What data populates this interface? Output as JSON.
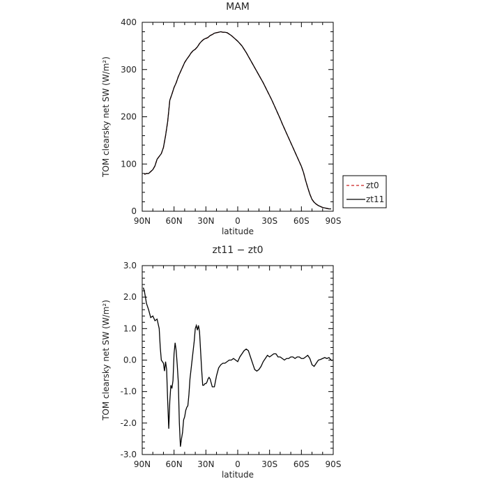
{
  "chart_data": [
    {
      "type": "line",
      "title": "MAM",
      "xlabel": "latitude",
      "ylabel": "TOM clearsky net SW (W/m²)",
      "x_ticks": [
        "90N",
        "60N",
        "30N",
        "0",
        "30S",
        "60S",
        "90S"
      ],
      "xlim": [
        90,
        -90
      ],
      "ylim": [
        0,
        400
      ],
      "y_ticks": [
        "0",
        "100",
        "200",
        "300",
        "400"
      ],
      "legend_position": "right-middle",
      "series": [
        {
          "name": "zt0",
          "color": "#cc2222",
          "style": "dashed",
          "x": [
            88,
            86,
            84,
            82,
            80,
            78,
            76,
            74,
            72,
            70,
            68,
            66,
            64,
            62,
            60,
            58,
            56,
            54,
            52,
            50,
            48,
            46,
            44,
            42,
            40,
            38,
            36,
            34,
            32,
            30,
            28,
            26,
            24,
            22,
            20,
            18,
            16,
            14,
            12,
            10,
            8,
            6,
            4,
            2,
            0,
            -2,
            -4,
            -6,
            -8,
            -10,
            -12,
            -14,
            -16,
            -18,
            -20,
            -22,
            -24,
            -26,
            -28,
            -30,
            -32,
            -34,
            -36,
            -38,
            -40,
            -42,
            -44,
            -46,
            -48,
            -50,
            -52,
            -54,
            -56,
            -58,
            -60,
            -62,
            -64,
            -66,
            -68,
            -70,
            -72,
            -74,
            -76,
            -78,
            -80,
            -82,
            -84,
            -86,
            -88
          ],
          "values": [
            78,
            80,
            80,
            84,
            88,
            96,
            110,
            116,
            122,
            135,
            160,
            190,
            235,
            248,
            262,
            272,
            285,
            295,
            305,
            315,
            322,
            328,
            335,
            340,
            343,
            348,
            355,
            360,
            364,
            365,
            368,
            372,
            374,
            377,
            378,
            379,
            380,
            379,
            379,
            378,
            375,
            372,
            368,
            364,
            360,
            355,
            350,
            343,
            336,
            328,
            320,
            312,
            304,
            296,
            288,
            280,
            272,
            263,
            254,
            245,
            236,
            226,
            216,
            206,
            196,
            185,
            175,
            165,
            155,
            145,
            135,
            125,
            115,
            105,
            95,
            82,
            65,
            50,
            36,
            25,
            19,
            15,
            12,
            10,
            8,
            7,
            6,
            5,
            5
          ]
        },
        {
          "name": "zt11",
          "color": "#000000",
          "style": "solid",
          "x": [
            88,
            86,
            84,
            82,
            80,
            78,
            76,
            74,
            72,
            70,
            68,
            66,
            64,
            62,
            60,
            58,
            56,
            54,
            52,
            50,
            48,
            46,
            44,
            42,
            40,
            38,
            36,
            34,
            32,
            30,
            28,
            26,
            24,
            22,
            20,
            18,
            16,
            14,
            12,
            10,
            8,
            6,
            4,
            2,
            0,
            -2,
            -4,
            -6,
            -8,
            -10,
            -12,
            -14,
            -16,
            -18,
            -20,
            -22,
            -24,
            -26,
            -28,
            -30,
            -32,
            -34,
            -36,
            -38,
            -40,
            -42,
            -44,
            -46,
            -48,
            -50,
            -52,
            -54,
            -56,
            -58,
            -60,
            -62,
            -64,
            -66,
            -68,
            -70,
            -72,
            -74,
            -76,
            -78,
            -80,
            -82,
            -84,
            -86,
            -88
          ],
          "values": [
            78,
            80,
            80,
            84,
            88,
            96,
            110,
            116,
            122,
            135,
            160,
            190,
            235,
            248,
            262,
            272,
            285,
            295,
            305,
            315,
            322,
            328,
            335,
            340,
            343,
            348,
            355,
            360,
            364,
            366,
            368,
            372,
            374,
            377,
            378,
            379,
            380,
            379,
            379,
            378,
            375,
            372,
            368,
            364,
            360,
            355,
            350,
            343,
            336,
            328,
            320,
            312,
            304,
            296,
            288,
            280,
            272,
            263,
            254,
            245,
            236,
            226,
            216,
            206,
            196,
            185,
            175,
            165,
            155,
            145,
            135,
            125,
            115,
            105,
            95,
            82,
            65,
            50,
            36,
            25,
            19,
            15,
            12,
            10,
            8,
            7,
            6,
            5,
            5
          ]
        }
      ]
    },
    {
      "type": "line",
      "title": "zt11 − zt0",
      "xlabel": "latitude",
      "ylabel": "TOM clearsky net SW (W/m²)",
      "x_ticks": [
        "90N",
        "60N",
        "30N",
        "0",
        "30S",
        "60S",
        "90S"
      ],
      "xlim": [
        90,
        -90
      ],
      "ylim": [
        -3,
        3
      ],
      "y_ticks": [
        "3.0",
        "2.0",
        "1.0",
        "0.0",
        "-1.0",
        "-2.0",
        "-3.0"
      ],
      "series": [
        {
          "color": "#000000",
          "x": [
            89,
            88,
            86,
            84,
            82,
            80,
            78,
            76,
            74,
            73,
            72,
            70,
            69,
            68,
            67,
            66,
            65,
            64,
            63,
            62,
            61,
            60,
            59,
            58,
            57,
            56,
            55,
            54,
            53,
            52,
            51,
            50,
            49,
            48,
            47,
            46,
            45,
            44,
            43,
            42,
            41,
            40,
            39,
            38,
            37,
            36,
            35,
            34,
            33,
            32,
            31,
            30,
            29,
            28,
            27,
            26,
            24,
            22,
            20,
            18,
            16,
            14,
            12,
            10,
            8,
            6,
            4,
            2,
            0,
            -2,
            -4,
            -6,
            -8,
            -10,
            -12,
            -14,
            -16,
            -18,
            -20,
            -22,
            -24,
            -26,
            -28,
            -30,
            -32,
            -34,
            -36,
            -38,
            -40,
            -42,
            -44,
            -46,
            -48,
            -50,
            -52,
            -54,
            -56,
            -58,
            -60,
            -62,
            -64,
            -66,
            -68,
            -70,
            -72,
            -74,
            -76,
            -78,
            -80,
            -82,
            -84,
            -86,
            -88,
            -89
          ],
          "values": [
            2.3,
            2.2,
            1.8,
            1.6,
            1.35,
            1.4,
            1.25,
            1.3,
            1.0,
            0.4,
            0.0,
            -0.1,
            -0.35,
            -0.05,
            -0.3,
            -1.3,
            -2.18,
            -1.3,
            -0.8,
            -0.9,
            -0.65,
            0.2,
            0.55,
            0.3,
            -0.15,
            -0.7,
            -2.0,
            -2.75,
            -2.5,
            -2.3,
            -1.9,
            -1.8,
            -1.6,
            -1.5,
            -1.45,
            -1.1,
            -0.6,
            -0.3,
            0.0,
            0.3,
            0.6,
            1.0,
            1.1,
            0.95,
            1.1,
            0.9,
            0.3,
            -0.3,
            -0.8,
            -0.8,
            -0.75,
            -0.75,
            -0.7,
            -0.6,
            -0.55,
            -0.6,
            -0.85,
            -0.85,
            -0.5,
            -0.25,
            -0.15,
            -0.1,
            -0.1,
            -0.05,
            0.0,
            0.0,
            0.05,
            0.0,
            -0.05,
            0.1,
            0.2,
            0.3,
            0.35,
            0.3,
            0.1,
            -0.1,
            -0.3,
            -0.35,
            -0.3,
            -0.2,
            -0.05,
            0.05,
            0.15,
            0.1,
            0.15,
            0.2,
            0.2,
            0.1,
            0.1,
            0.05,
            0.0,
            0.05,
            0.05,
            0.1,
            0.1,
            0.05,
            0.1,
            0.1,
            0.05,
            0.05,
            0.1,
            0.15,
            0.05,
            -0.15,
            -0.2,
            -0.1,
            0.0,
            0.02,
            0.05,
            0.08,
            0.05,
            0.08,
            0.0,
            -0.02
          ]
        }
      ]
    }
  ]
}
